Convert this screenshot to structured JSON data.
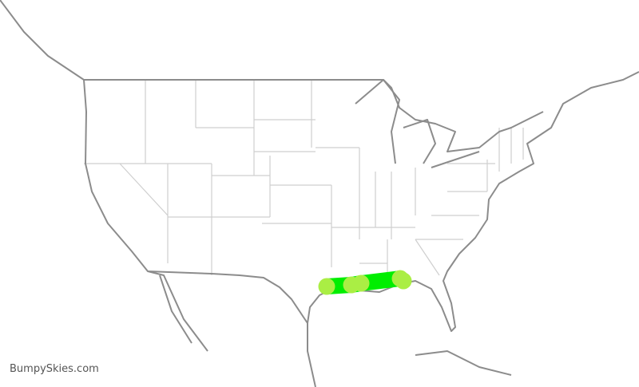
{
  "watermark": "BumpySkies.com",
  "colors": {
    "route_band": "#00ee00",
    "airport_marker": "#aaee44",
    "coastline": "#8c8c8c",
    "state_border": "#cfcfcf",
    "background": "#ffffff"
  },
  "route": {
    "points": [
      {
        "lon": -95.3,
        "lat": 29.9
      },
      {
        "lon": -92.2,
        "lat": 30.1
      },
      {
        "lon": -91.0,
        "lat": 30.3
      },
      {
        "lon": -86.1,
        "lat": 30.9
      },
      {
        "lon": -85.7,
        "lat": 30.6
      }
    ]
  }
}
